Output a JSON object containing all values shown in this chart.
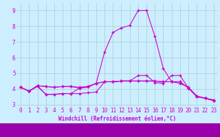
{
  "xlabel": "Windchill (Refroidissement éolien,°C)",
  "background_color": "#cceeff",
  "line_color": "#cc00cc",
  "x_values": [
    0,
    1,
    2,
    3,
    4,
    5,
    6,
    7,
    8,
    9,
    10,
    11,
    12,
    13,
    14,
    15,
    16,
    17,
    18,
    19,
    20,
    21,
    22,
    23
  ],
  "line1": [
    4.1,
    3.85,
    4.15,
    3.65,
    3.65,
    3.7,
    3.7,
    3.7,
    3.75,
    3.8,
    4.45,
    4.45,
    4.5,
    4.5,
    4.85,
    4.85,
    4.4,
    4.35,
    4.85,
    4.85,
    4.05,
    3.5,
    3.4,
    3.3
  ],
  "line2": [
    4.1,
    3.85,
    4.2,
    4.15,
    4.1,
    4.15,
    4.15,
    4.05,
    4.15,
    4.35,
    6.35,
    7.6,
    7.9,
    8.05,
    9.0,
    9.0,
    7.35,
    5.3,
    4.45,
    4.35,
    4.1,
    3.55,
    3.4,
    3.25
  ],
  "line3": [
    4.1,
    3.85,
    4.2,
    4.15,
    4.1,
    4.15,
    4.15,
    4.1,
    4.15,
    4.35,
    4.45,
    4.45,
    4.5,
    4.5,
    4.5,
    4.5,
    4.5,
    4.45,
    4.45,
    4.45,
    4.05,
    3.5,
    3.4,
    3.25
  ],
  "line4": [
    4.1,
    3.85,
    4.2,
    3.65,
    3.65,
    3.7,
    3.7,
    4.05,
    4.1,
    4.35,
    4.45,
    4.45,
    4.5,
    4.5,
    4.5,
    4.5,
    4.5,
    4.45,
    4.45,
    4.45,
    4.05,
    3.5,
    3.4,
    3.25
  ],
  "ylim": [
    2.85,
    9.5
  ],
  "xlim": [
    -0.5,
    23.5
  ],
  "yticks": [
    3,
    4,
    5,
    6,
    7,
    8,
    9
  ],
  "xticks": [
    0,
    1,
    2,
    3,
    4,
    5,
    6,
    7,
    8,
    9,
    10,
    11,
    12,
    13,
    14,
    15,
    16,
    17,
    18,
    19,
    20,
    21,
    22,
    23
  ],
  "grid_color": "#aacccc",
  "tick_color": "#cc00cc",
  "label_fontsize": 5.5,
  "tick_fontsize": 5.5
}
